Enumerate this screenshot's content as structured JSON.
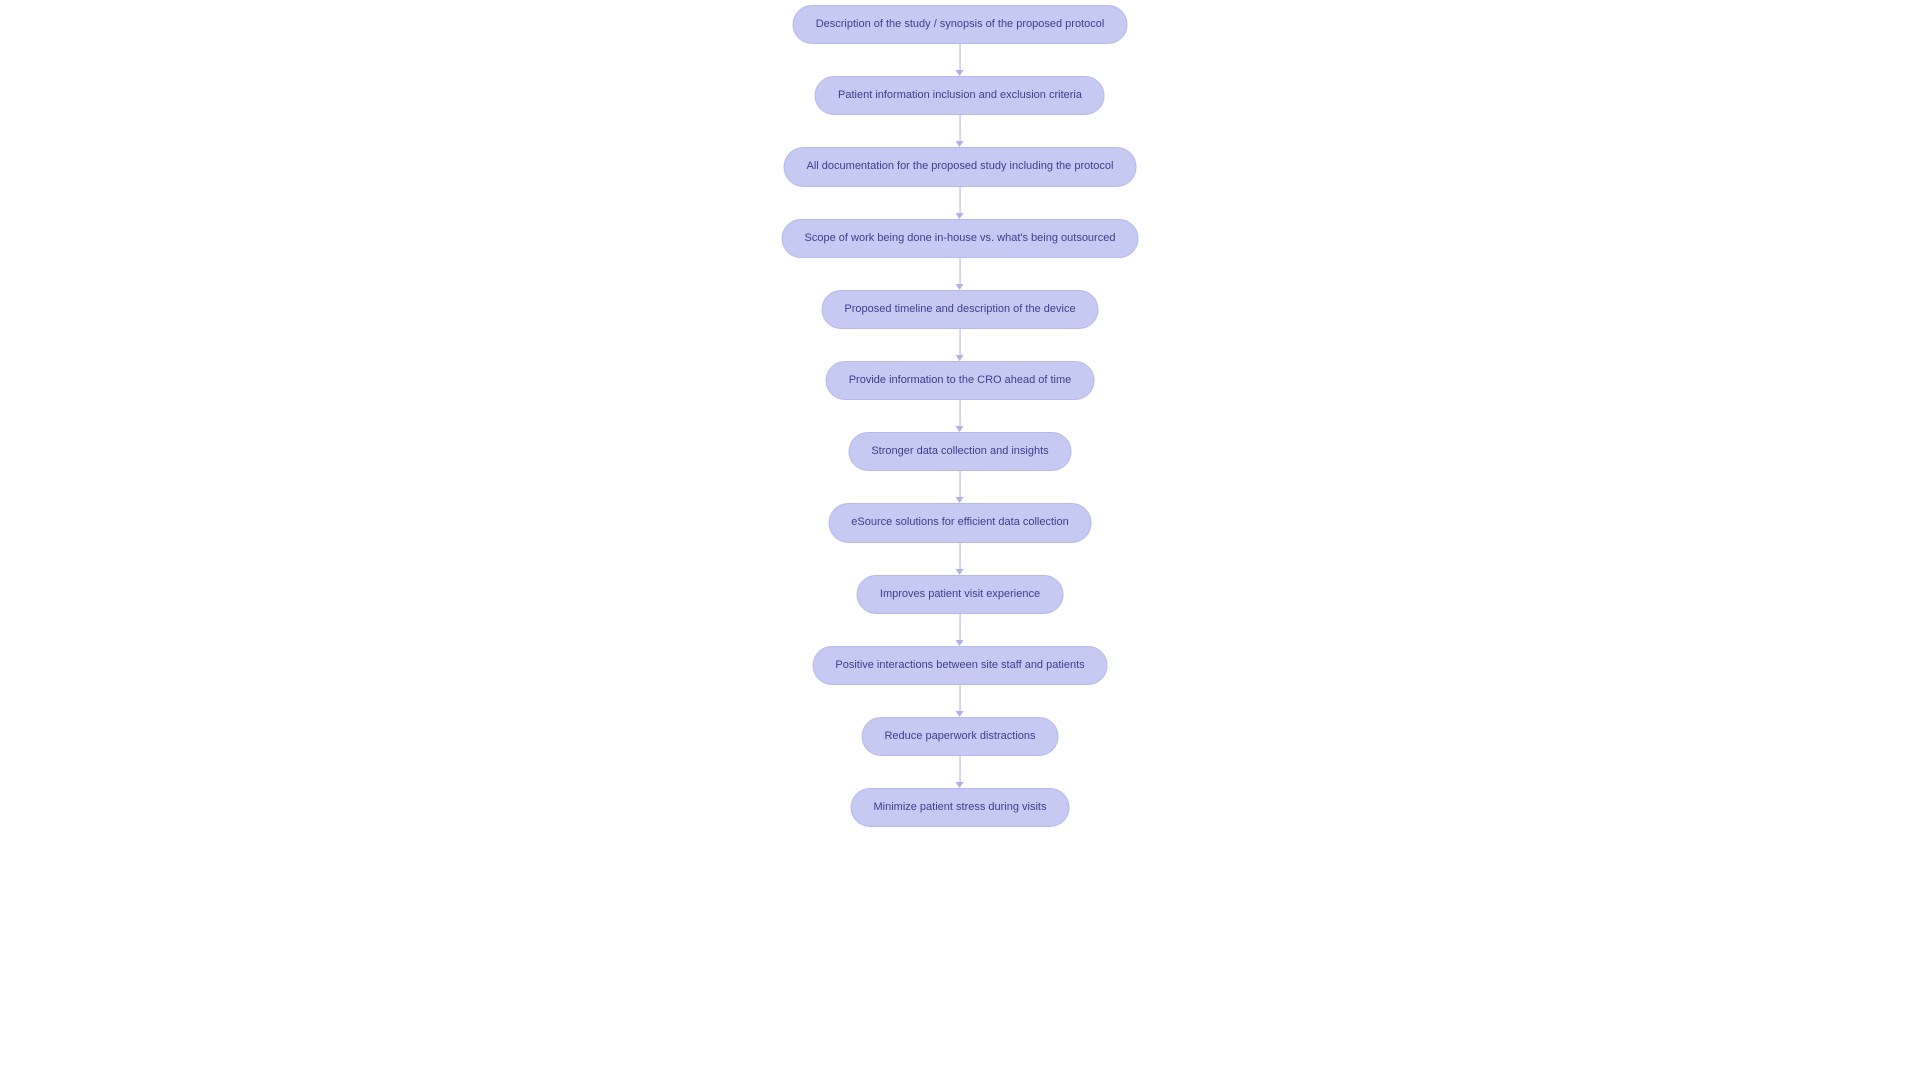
{
  "flowchart": {
    "type": "flowchart",
    "direction": "vertical",
    "background_color": "#ffffff",
    "node_bg_color": "#c6c9f2",
    "node_border_color": "#b5b9ed",
    "node_text_color": "#3b3f8f",
    "arrow_color": "#aeb2e8",
    "node_fontsize": 11,
    "node_border_radius": 999,
    "node_padding_v": 12,
    "node_padding_h": 22,
    "connector_height": 32,
    "nodes": [
      {
        "id": "n1",
        "label": "Description of the study / synopsis of the proposed protocol"
      },
      {
        "id": "n2",
        "label": "Patient information inclusion and exclusion criteria"
      },
      {
        "id": "n3",
        "label": "All documentation for the proposed study including the protocol"
      },
      {
        "id": "n4",
        "label": "Scope of work being done in-house vs. what's being outsourced"
      },
      {
        "id": "n5",
        "label": "Proposed timeline and description of the device"
      },
      {
        "id": "n6",
        "label": "Provide information to the CRO ahead of time"
      },
      {
        "id": "n7",
        "label": "Stronger data collection and insights"
      },
      {
        "id": "n8",
        "label": "eSource solutions for efficient data collection"
      },
      {
        "id": "n9",
        "label": "Improves patient visit experience"
      },
      {
        "id": "n10",
        "label": "Positive interactions between site staff and patients"
      },
      {
        "id": "n11",
        "label": "Reduce paperwork distractions"
      },
      {
        "id": "n12",
        "label": "Minimize patient stress during visits"
      }
    ],
    "edges": [
      {
        "from": "n1",
        "to": "n2"
      },
      {
        "from": "n2",
        "to": "n3"
      },
      {
        "from": "n3",
        "to": "n4"
      },
      {
        "from": "n4",
        "to": "n5"
      },
      {
        "from": "n5",
        "to": "n6"
      },
      {
        "from": "n6",
        "to": "n7"
      },
      {
        "from": "n7",
        "to": "n8"
      },
      {
        "from": "n8",
        "to": "n9"
      },
      {
        "from": "n9",
        "to": "n10"
      },
      {
        "from": "n10",
        "to": "n11"
      },
      {
        "from": "n11",
        "to": "n12"
      }
    ]
  }
}
